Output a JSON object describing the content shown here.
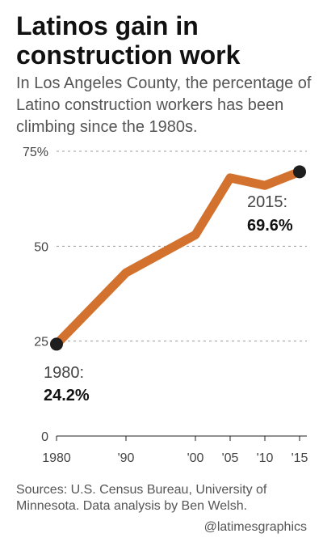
{
  "chart_data": {
    "type": "line",
    "title": "Latinos gain in construction work",
    "subtitle": "In Los Angeles County, the percentage of Latino construction workers has been climbing since the 1980s.",
    "x": [
      1980,
      1990,
      2000,
      2005,
      2010,
      2015
    ],
    "series": [
      {
        "values": [
          24.2,
          43.0,
          53.0,
          68.0,
          66.0,
          69.6
        ]
      }
    ],
    "xticks": [
      {
        "value": 1980,
        "label": "1980"
      },
      {
        "value": 1990,
        "label": "'90"
      },
      {
        "value": 2000,
        "label": "'00"
      },
      {
        "value": 2005,
        "label": "'05"
      },
      {
        "value": 2010,
        "label": "'10"
      },
      {
        "value": 2015,
        "label": "'15"
      }
    ],
    "yticks": [
      {
        "value": 0,
        "label": "0"
      },
      {
        "value": 25,
        "label": "25"
      },
      {
        "value": 50,
        "label": "50"
      },
      {
        "value": 75,
        "label": "75%"
      }
    ],
    "xlim": [
      1980,
      2015
    ],
    "ylim": [
      0,
      75
    ],
    "grid": true,
    "annotations": [
      {
        "x": 1980,
        "y": 24.2,
        "year_label": "1980:",
        "value_label": "24.2%"
      },
      {
        "x": 2015,
        "y": 69.6,
        "year_label": "2015:",
        "value_label": "69.6%"
      }
    ],
    "line_color": "#d2722e",
    "marker_color": "#1e1e1e"
  },
  "footer": {
    "sources": "Sources: U.S. Census Bureau, University of Minnesota. Data analysis by Ben Welsh.",
    "credit": "@latimesgraphics"
  }
}
